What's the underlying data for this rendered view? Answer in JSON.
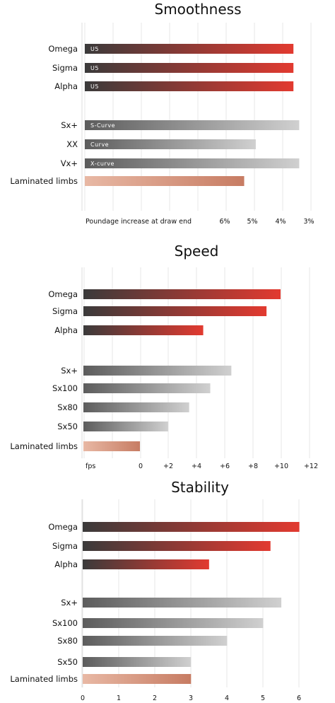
{
  "colors": {
    "omega_sigma_alpha": [
      "#3a3a3a",
      "#e23a30"
    ],
    "grey_series": [
      "#5c5c5c",
      "#d0d0d0"
    ],
    "laminated": [
      "#e8b8a4",
      "#c77c63"
    ],
    "grid": "#e7e7e7"
  },
  "chart_data": [
    {
      "type": "bar",
      "orientation": "horizontal",
      "title": "Smoothness",
      "xlabel": "Poundage increase at draw end",
      "x_ticks": [
        "6%",
        "5%",
        "4%",
        "3%"
      ],
      "categories": [
        "Omega",
        "Sigma",
        "Alpha",
        "Sx+",
        "XX",
        "Vx+",
        "Laminated limbs"
      ],
      "values": [
        7.2,
        7.2,
        7.2,
        7.4,
        5.9,
        7.4,
        5.5
      ],
      "bar_labels": [
        "U5",
        "U5",
        "U5",
        "S-Curve",
        "Curve",
        "X-curve",
        ""
      ],
      "grid": true
    },
    {
      "type": "bar",
      "orientation": "horizontal",
      "title": "Speed",
      "xlabel": "fps",
      "x_ticks": [
        "0",
        "+2",
        "+4",
        "+6",
        "+8",
        "+10",
        "+12"
      ],
      "categories": [
        "Omega",
        "Sigma",
        "Alpha",
        "Sx+",
        "Sx100",
        "Sx80",
        "Sx50",
        "Laminated limbs"
      ],
      "values": [
        10,
        9,
        4.5,
        6.5,
        5,
        3.5,
        2,
        0
      ],
      "xlim": [
        -2,
        12
      ],
      "grid": true
    },
    {
      "type": "bar",
      "orientation": "horizontal",
      "title": "Stability",
      "xlabel": "",
      "x_ticks": [
        "0",
        "1",
        "2",
        "3",
        "4",
        "5",
        "6"
      ],
      "categories": [
        "Omega",
        "Sigma",
        "Alpha",
        "Sx+",
        "Sx100",
        "Sx80",
        "Sx50",
        "Laminated limbs"
      ],
      "values": [
        6,
        5.2,
        3.5,
        5.5,
        5,
        4,
        3,
        3
      ],
      "xlim": [
        0,
        6
      ],
      "grid": true
    }
  ]
}
